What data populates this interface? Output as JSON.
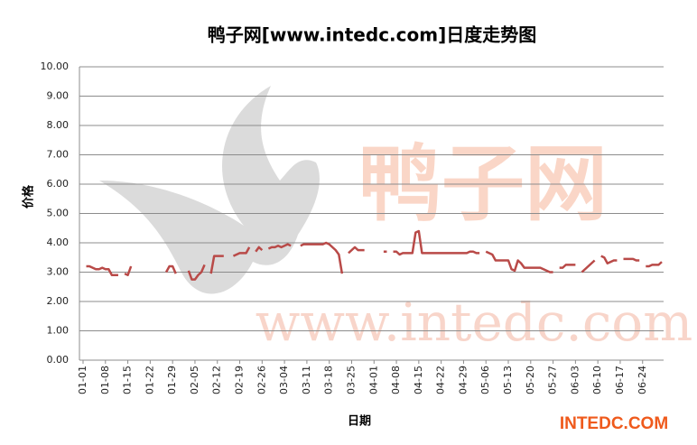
{
  "chart_data": {
    "type": "line",
    "title": "鸭子网[www.intedc.com]日度走势图",
    "x_label": "日期",
    "y_label": "价格",
    "watermark": {
      "name": "鸭子网",
      "url": "www.intedc.com"
    },
    "logo": "INTEDC.COM",
    "color": "#b94a48",
    "grid": true,
    "ylim": [
      0,
      10
    ],
    "yticks": [
      {
        "value": 0,
        "label": "0.00"
      },
      {
        "value": 1,
        "label": "1.00"
      },
      {
        "value": 2,
        "label": "2.00"
      },
      {
        "value": 3,
        "label": "3.00"
      },
      {
        "value": 4,
        "label": "4.00"
      },
      {
        "value": 5,
        "label": "5.00"
      },
      {
        "value": 6,
        "label": "6.00"
      },
      {
        "value": 7,
        "label": "7.00"
      },
      {
        "value": 8,
        "label": "8.00"
      },
      {
        "value": 9,
        "label": "9.00"
      },
      {
        "value": 10,
        "label": "10.00"
      }
    ],
    "categories": [
      "01-01",
      null,
      null,
      null,
      null,
      null,
      null,
      "01-08",
      null,
      null,
      null,
      null,
      null,
      null,
      "01-15",
      null,
      null,
      null,
      null,
      null,
      null,
      "01-22",
      null,
      null,
      null,
      null,
      null,
      null,
      "01-29",
      null,
      null,
      null,
      null,
      null,
      null,
      "02-05",
      null,
      null,
      null,
      null,
      null,
      null,
      "02-12",
      null,
      null,
      null,
      null,
      null,
      null,
      "02-19",
      null,
      null,
      null,
      null,
      null,
      null,
      "02-26",
      null,
      null,
      null,
      null,
      null,
      null,
      "03-04",
      null,
      null,
      null,
      null,
      null,
      null,
      "03-11",
      null,
      null,
      null,
      null,
      null,
      null,
      "03-18",
      null,
      null,
      null,
      null,
      null,
      null,
      "03-25",
      null,
      null,
      null,
      null,
      null,
      null,
      "04-01",
      null,
      null,
      null,
      null,
      null,
      null,
      "04-08",
      null,
      null,
      null,
      null,
      null,
      null,
      "04-15",
      null,
      null,
      null,
      null,
      null,
      null,
      "04-22",
      null,
      null,
      null,
      null,
      null,
      null,
      "04-29",
      null,
      null,
      null,
      null,
      null,
      null,
      "05-06",
      null,
      null,
      null,
      null,
      null,
      null,
      "05-13",
      null,
      null,
      null,
      null,
      null,
      null,
      "05-20",
      null,
      null,
      null,
      null,
      null,
      null,
      "05-27",
      null,
      null,
      null,
      null,
      null,
      null,
      "06-03",
      null,
      null,
      null,
      null,
      null,
      null,
      "06-10",
      null,
      null,
      null,
      null,
      null,
      null,
      "06-17",
      null,
      null,
      null,
      null,
      null,
      null,
      "06-24",
      null,
      null,
      null,
      null,
      null,
      null
    ],
    "values": [
      null,
      3.2,
      3.2,
      3.15,
      3.1,
      3.1,
      3.15,
      3.1,
      3.1,
      2.9,
      2.9,
      2.9,
      null,
      2.95,
      2.9,
      3.2,
      null,
      null,
      null,
      null,
      null,
      null,
      null,
      null,
      null,
      null,
      3.0,
      3.2,
      3.2,
      2.95,
      null,
      null,
      null,
      3.05,
      2.75,
      2.75,
      2.9,
      3.0,
      3.25,
      null,
      2.95,
      3.55,
      3.55,
      3.55,
      3.55,
      null,
      null,
      3.55,
      3.6,
      3.65,
      3.65,
      3.65,
      3.85,
      null,
      3.7,
      3.85,
      3.75,
      null,
      3.8,
      3.85,
      3.85,
      3.9,
      3.85,
      3.9,
      3.95,
      3.9,
      null,
      null,
      3.9,
      3.95,
      3.95,
      3.95,
      3.95,
      3.95,
      3.95,
      3.95,
      4.0,
      3.95,
      3.85,
      3.75,
      3.6,
      2.95,
      null,
      3.65,
      3.75,
      3.85,
      3.75,
      3.75,
      3.75,
      null,
      null,
      null,
      null,
      null,
      3.7,
      3.7,
      null,
      3.7,
      3.7,
      3.6,
      3.65,
      3.65,
      3.65,
      3.65,
      4.35,
      4.4,
      3.65,
      3.65,
      3.65,
      3.65,
      3.65,
      3.65,
      3.65,
      3.65,
      3.65,
      3.65,
      3.65,
      3.65,
      3.65,
      3.65,
      3.65,
      3.7,
      3.7,
      3.65,
      3.65,
      null,
      3.7,
      3.65,
      3.6,
      3.4,
      3.4,
      3.4,
      3.4,
      3.4,
      3.1,
      3.05,
      3.4,
      3.3,
      3.15,
      3.15,
      3.15,
      3.15,
      3.15,
      3.15,
      3.1,
      3.05,
      3.0,
      3.0,
      null,
      3.15,
      3.15,
      3.25,
      3.25,
      3.25,
      3.25,
      null,
      3.0,
      3.1,
      3.2,
      3.3,
      3.4,
      null,
      3.55,
      3.5,
      3.3,
      3.35,
      3.4,
      3.4,
      null,
      3.45,
      3.45,
      3.45,
      3.45,
      3.4,
      3.4,
      null,
      3.2,
      3.2,
      3.25,
      3.25,
      3.25,
      3.35
    ]
  }
}
